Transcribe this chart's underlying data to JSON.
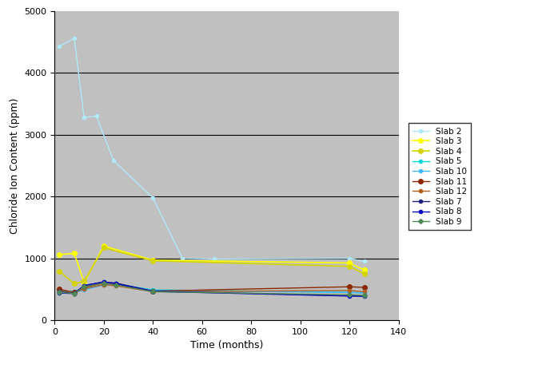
{
  "title": "",
  "xlabel": "Time (months)",
  "ylabel": "Chloride Ion Content (ppm)",
  "xlim": [
    0,
    140
  ],
  "ylim": [
    0,
    5000
  ],
  "xticks": [
    0,
    20,
    40,
    60,
    80,
    100,
    120,
    140
  ],
  "yticks": [
    0,
    1000,
    2000,
    3000,
    4000,
    5000
  ],
  "plot_bg_color": "#c0c0c0",
  "fig_bg_color": "#c0c0c0",
  "series": {
    "Slab 2": {
      "x": [
        2,
        8,
        12,
        17,
        24,
        40,
        52,
        65,
        120,
        126
      ],
      "y": [
        4430,
        4560,
        3280,
        3300,
        2580,
        1980,
        1000,
        990,
        1000,
        950
      ],
      "color": "#b0e8f8",
      "marker": "o",
      "markersize": 3,
      "linewidth": 1.0
    },
    "Slab 3": {
      "x": [
        2,
        8,
        12,
        20,
        40,
        120,
        126
      ],
      "y": [
        1060,
        1080,
        610,
        1200,
        970,
        925,
        810
      ],
      "color": "#ffff00",
      "marker": "o",
      "markersize": 4,
      "linewidth": 1.2
    },
    "Slab 4": {
      "x": [
        2,
        8,
        12,
        20,
        40,
        120,
        126
      ],
      "y": [
        790,
        590,
        630,
        1170,
        960,
        870,
        750
      ],
      "color": "#d4d400",
      "marker": "o",
      "markersize": 4,
      "linewidth": 1.2
    },
    "Slab 5": {
      "x": [
        2,
        8,
        12,
        20,
        25,
        40,
        120,
        126
      ],
      "y": [
        450,
        470,
        500,
        570,
        580,
        490,
        450,
        440
      ],
      "color": "#00d8d8",
      "marker": "o",
      "markersize": 3,
      "linewidth": 1.0
    },
    "Slab 10": {
      "x": [
        2,
        8,
        12,
        20,
        25,
        40,
        120,
        126
      ],
      "y": [
        490,
        445,
        490,
        570,
        590,
        480,
        450,
        440
      ],
      "color": "#40b8ff",
      "marker": "o",
      "markersize": 3,
      "linewidth": 1.0
    },
    "Slab 11": {
      "x": [
        2,
        8,
        12,
        20,
        25,
        40,
        120,
        126
      ],
      "y": [
        500,
        450,
        530,
        600,
        580,
        470,
        540,
        530
      ],
      "color": "#8b2800",
      "marker": "o",
      "markersize": 4,
      "linewidth": 1.0
    },
    "Slab 12": {
      "x": [
        2,
        8,
        12,
        20,
        25,
        40,
        120,
        126
      ],
      "y": [
        470,
        445,
        510,
        575,
        555,
        460,
        480,
        460
      ],
      "color": "#b06020",
      "marker": "o",
      "markersize": 3,
      "linewidth": 1.0
    },
    "Slab 7": {
      "x": [
        2,
        8,
        12,
        20,
        25,
        40,
        120,
        126
      ],
      "y": [
        460,
        435,
        555,
        615,
        600,
        470,
        395,
        395
      ],
      "color": "#202080",
      "marker": "o",
      "markersize": 3,
      "linewidth": 1.0
    },
    "Slab 8": {
      "x": [
        2,
        8,
        12,
        20,
        25,
        40,
        120,
        126
      ],
      "y": [
        440,
        430,
        560,
        620,
        590,
        465,
        390,
        385
      ],
      "color": "#0000c0",
      "marker": "o",
      "markersize": 3,
      "linewidth": 1.0
    },
    "Slab 9": {
      "x": [
        2,
        8,
        12,
        20,
        25,
        40,
        120,
        126
      ],
      "y": [
        450,
        430,
        540,
        600,
        570,
        460,
        410,
        400
      ],
      "color": "#508858",
      "marker": "D",
      "markersize": 3,
      "linewidth": 1.0
    }
  },
  "legend_order": [
    "Slab 2",
    "Slab 3",
    "Slab 4",
    "Slab 5",
    "Slab 10",
    "Slab 11",
    "Slab 12",
    "Slab 7",
    "Slab 8",
    "Slab 9"
  ]
}
